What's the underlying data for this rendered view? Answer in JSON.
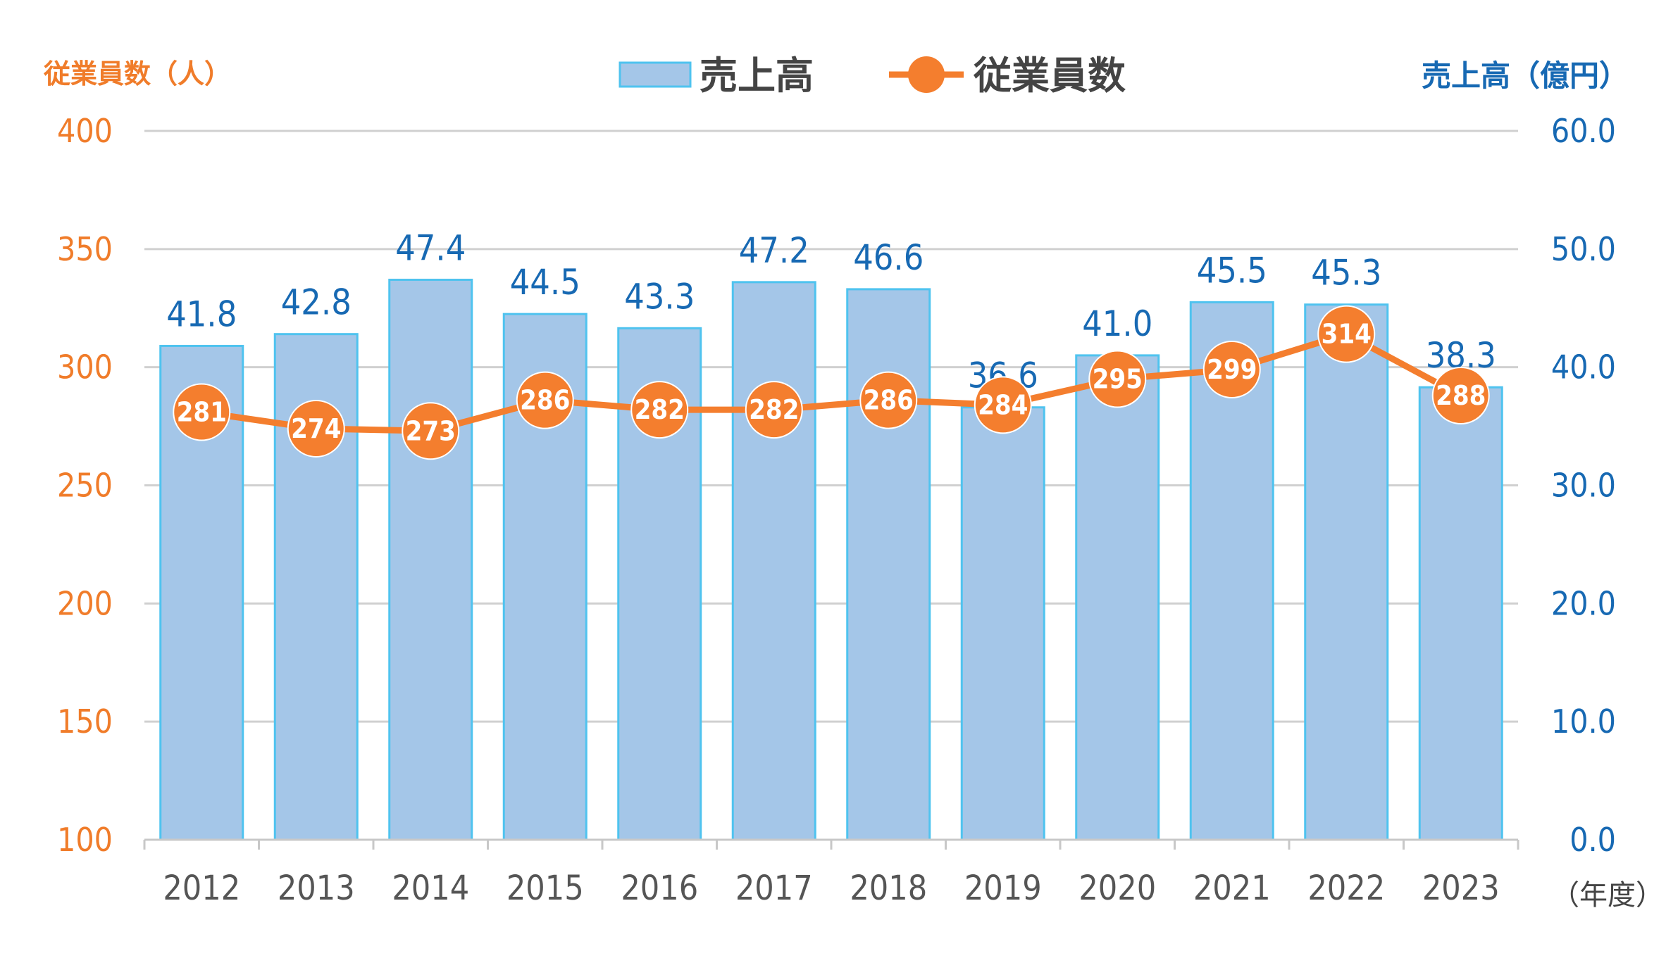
{
  "chart_data": {
    "type": "bar+line",
    "title": "",
    "categories": [
      "2012",
      "2013",
      "2014",
      "2015",
      "2016",
      "2017",
      "2018",
      "2019",
      "2020",
      "2021",
      "2022",
      "2023"
    ],
    "series": [
      {
        "name": "売上高",
        "type": "bar",
        "axis": "right",
        "values": [
          41.8,
          42.8,
          47.4,
          44.5,
          43.3,
          47.2,
          46.6,
          36.6,
          41.0,
          45.5,
          45.3,
          38.3
        ],
        "labels": [
          "41.8",
          "42.8",
          "47.4",
          "44.5",
          "43.3",
          "47.2",
          "46.6",
          "36.6",
          "41.0",
          "45.5",
          "45.3",
          "38.3"
        ],
        "color": "#a4c6e8",
        "edge_color": "#4fc3ef"
      },
      {
        "name": "従業員数",
        "type": "line",
        "axis": "left",
        "values": [
          281,
          274,
          273,
          286,
          282,
          282,
          286,
          284,
          295,
          299,
          314,
          288
        ],
        "labels": [
          "281",
          "274",
          "273",
          "286",
          "282",
          "282",
          "286",
          "284",
          "295",
          "299",
          "314",
          "288"
        ],
        "color": "#f47e2e"
      }
    ],
    "left_axis": {
      "label": "従業員数（人）",
      "ylim": [
        100,
        400
      ],
      "ticks": [
        "100",
        "150",
        "200",
        "250",
        "300",
        "350",
        "400"
      ],
      "color": "#f07c2a"
    },
    "right_axis": {
      "label": "売上高（億円）",
      "ylim": [
        0,
        60
      ],
      "ticks": [
        "0.0",
        "10.0",
        "20.0",
        "30.0",
        "40.0",
        "50.0",
        "60.0"
      ],
      "color": "#1769b3"
    },
    "xlabel": "（年度）",
    "legend": {
      "placement": "top-center",
      "items": [
        {
          "label": "売上高",
          "kind": "bar"
        },
        {
          "label": "従業員数",
          "kind": "line"
        }
      ]
    },
    "grid": true
  }
}
